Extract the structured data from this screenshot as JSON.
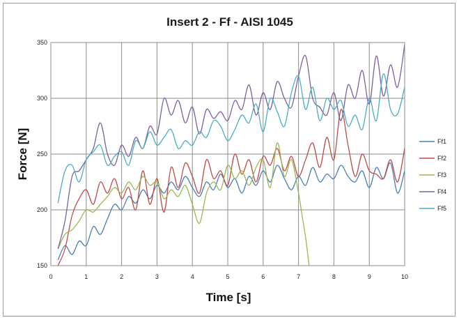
{
  "chart_data": {
    "type": "line",
    "title": "Insert 2 - Ff - AISI 1045",
    "xlabel": "Time [s]",
    "ylabel": "Force [N]",
    "xlim": [
      0,
      10
    ],
    "ylim": [
      150,
      350
    ],
    "xticks": [
      "0",
      "1",
      "2",
      "3",
      "4",
      "5",
      "6",
      "7",
      "8",
      "9",
      "10"
    ],
    "yticks": [
      "150",
      "200",
      "250",
      "300",
      "350"
    ],
    "grid": true,
    "legend_position": "right",
    "series": [
      {
        "name": "Ff1",
        "color": "#4a7ebb",
        "x": [
          0.2,
          0.4,
          0.6,
          0.8,
          1.0,
          1.2,
          1.4,
          1.6,
          1.8,
          2.0,
          2.2,
          2.4,
          2.6,
          2.8,
          3.0,
          3.2,
          3.4,
          3.6,
          3.8,
          4.0,
          4.2,
          4.4,
          4.6,
          4.8,
          5.0,
          5.2,
          5.4,
          5.6,
          5.8,
          6.0,
          6.2,
          6.4,
          6.6,
          6.8,
          7.0,
          7.2,
          7.4,
          7.6,
          7.8,
          8.0,
          8.2,
          8.4,
          8.6,
          8.8,
          9.0,
          9.2,
          9.4,
          9.6,
          9.8,
          10.0
        ],
        "y": [
          155,
          168,
          160,
          172,
          168,
          185,
          178,
          192,
          205,
          200,
          212,
          206,
          218,
          210,
          222,
          215,
          225,
          218,
          230,
          220,
          212,
          225,
          218,
          232,
          220,
          228,
          215,
          230,
          222,
          235,
          225,
          240,
          228,
          218,
          230,
          222,
          238,
          225,
          232,
          228,
          240,
          230,
          225,
          235,
          220,
          238,
          228,
          242,
          215,
          235
        ]
      },
      {
        "name": "Ff2",
        "color": "#be4b48",
        "x": [
          0.2,
          0.4,
          0.6,
          0.8,
          1.0,
          1.2,
          1.4,
          1.6,
          1.8,
          2.0,
          2.2,
          2.4,
          2.6,
          2.8,
          3.0,
          3.2,
          3.4,
          3.6,
          3.8,
          4.0,
          4.2,
          4.4,
          4.6,
          4.8,
          5.0,
          5.2,
          5.4,
          5.6,
          5.8,
          6.0,
          6.2,
          6.4,
          6.6,
          6.8,
          7.0,
          7.2,
          7.4,
          7.6,
          7.8,
          8.0,
          8.2,
          8.4,
          8.6,
          8.8,
          9.0,
          9.2,
          9.4,
          9.6,
          9.8,
          10.0
        ],
        "y": [
          150,
          165,
          195,
          210,
          218,
          205,
          225,
          215,
          228,
          210,
          220,
          200,
          235,
          205,
          228,
          198,
          238,
          220,
          242,
          230,
          215,
          245,
          228,
          235,
          222,
          250,
          232,
          245,
          225,
          248,
          240,
          255,
          235,
          248,
          230,
          245,
          260,
          238,
          265,
          245,
          290,
          258,
          230,
          250,
          235,
          232,
          228,
          245,
          225,
          255
        ]
      },
      {
        "name": "Ff3",
        "color": "#98b954",
        "x": [
          0.2,
          0.4,
          0.6,
          0.8,
          1.0,
          1.2,
          1.4,
          1.6,
          1.8,
          2.0,
          2.2,
          2.4,
          2.6,
          2.8,
          3.0,
          3.2,
          3.4,
          3.6,
          3.8,
          4.0,
          4.2,
          4.4,
          4.6,
          4.8,
          5.0,
          5.2,
          5.4,
          5.6,
          5.8,
          6.0,
          6.2,
          6.4,
          6.6,
          6.8,
          7.0,
          7.1,
          7.2,
          7.3
        ],
        "y": [
          165,
          178,
          182,
          190,
          200,
          198,
          205,
          212,
          220,
          215,
          225,
          218,
          230,
          222,
          225,
          210,
          218,
          212,
          222,
          205,
          188,
          215,
          225,
          218,
          240,
          228,
          235,
          222,
          238,
          245,
          220,
          260,
          230,
          245,
          215,
          195,
          175,
          150
        ]
      },
      {
        "name": "Ff4",
        "color": "#7d60a0",
        "x": [
          0.2,
          0.4,
          0.6,
          0.8,
          1.0,
          1.2,
          1.4,
          1.6,
          1.8,
          2.0,
          2.2,
          2.4,
          2.6,
          2.8,
          3.0,
          3.2,
          3.4,
          3.6,
          3.8,
          4.0,
          4.2,
          4.4,
          4.6,
          4.8,
          5.0,
          5.2,
          5.4,
          5.6,
          5.8,
          6.0,
          6.2,
          6.4,
          6.6,
          6.8,
          7.0,
          7.2,
          7.4,
          7.6,
          7.8,
          8.0,
          8.2,
          8.4,
          8.6,
          8.8,
          9.0,
          9.2,
          9.4,
          9.6,
          9.8,
          10.0
        ],
        "y": [
          165,
          190,
          230,
          235,
          245,
          255,
          278,
          250,
          240,
          258,
          248,
          265,
          255,
          275,
          268,
          300,
          285,
          298,
          278,
          292,
          268,
          290,
          282,
          288,
          280,
          298,
          290,
          312,
          285,
          305,
          290,
          315,
          300,
          292,
          320,
          338,
          300,
          292,
          285,
          305,
          280,
          312,
          300,
          325,
          295,
          338,
          302,
          330,
          310,
          348
        ]
      },
      {
        "name": "Ff5",
        "color": "#4bacc6",
        "x": [
          0.2,
          0.4,
          0.6,
          0.8,
          1.0,
          1.2,
          1.4,
          1.6,
          1.8,
          2.0,
          2.2,
          2.4,
          2.6,
          2.8,
          3.0,
          3.2,
          3.4,
          3.6,
          3.8,
          4.0,
          4.2,
          4.4,
          4.6,
          4.8,
          5.0,
          5.2,
          5.4,
          5.6,
          5.8,
          6.0,
          6.2,
          6.4,
          6.6,
          6.8,
          7.0,
          7.2,
          7.4,
          7.6,
          7.8,
          8.0,
          8.2,
          8.4,
          8.6,
          8.8,
          9.0,
          9.2,
          9.4,
          9.6,
          9.8,
          10.0
        ],
        "y": [
          206,
          235,
          240,
          225,
          245,
          252,
          258,
          240,
          248,
          252,
          240,
          262,
          255,
          270,
          258,
          265,
          272,
          255,
          262,
          258,
          270,
          265,
          280,
          275,
          262,
          272,
          285,
          278,
          295,
          270,
          300,
          288,
          275,
          305,
          320,
          290,
          310,
          280,
          300,
          290,
          298,
          275,
          285,
          272,
          300,
          280,
          322,
          290,
          286,
          310
        ]
      }
    ]
  }
}
